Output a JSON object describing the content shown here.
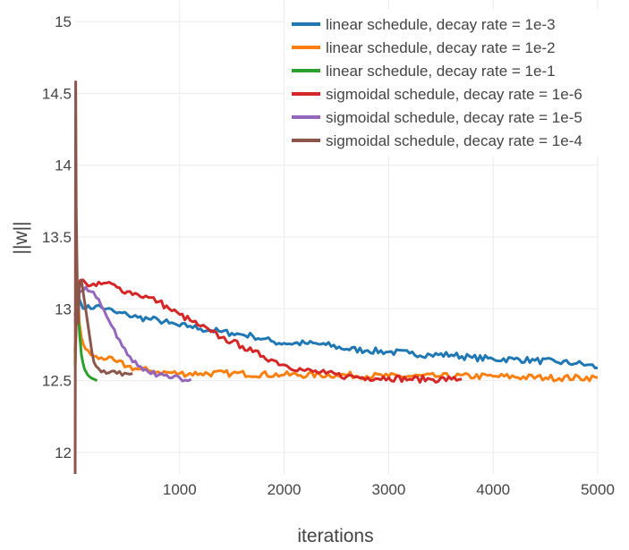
{
  "chart_data": {
    "type": "line",
    "xlabel": "iterations",
    "ylabel": "||w||",
    "xlim": [
      0,
      5000
    ],
    "ylim": [
      11.85,
      15.15
    ],
    "xticks": [
      1000,
      2000,
      3000,
      4000,
      5000
    ],
    "xtick_labels": [
      "1000",
      "2000",
      "3000",
      "4000",
      "5000"
    ],
    "yticks": [
      12,
      12.5,
      13,
      13.5,
      14,
      14.5,
      15
    ],
    "ytick_labels": [
      "12",
      "12.5",
      "13",
      "13.5",
      "14",
      "14.5",
      "15"
    ],
    "grid": true,
    "legend_position": "top-right",
    "series": [
      {
        "name": "linear schedule, decay rate = 1e-3",
        "color": "#1f77b4",
        "x": [
          0,
          20,
          50,
          100,
          200,
          300,
          400,
          500,
          600,
          700,
          800,
          900,
          1000,
          1100,
          1200,
          1300,
          1400,
          1500,
          1600,
          1700,
          1800,
          1900,
          2000,
          2200,
          2400,
          2600,
          2800,
          3000,
          3200,
          3400,
          3600,
          3800,
          4000,
          4200,
          4400,
          4600,
          4800,
          4900,
          5000
        ],
        "y": [
          12.95,
          13.1,
          13.05,
          13.0,
          13.02,
          13.0,
          12.97,
          12.96,
          12.94,
          12.93,
          12.92,
          12.9,
          12.88,
          12.88,
          12.86,
          12.85,
          12.84,
          12.83,
          12.82,
          12.81,
          12.79,
          12.77,
          12.76,
          12.76,
          12.75,
          12.72,
          12.71,
          12.7,
          12.69,
          12.68,
          12.68,
          12.66,
          12.65,
          12.65,
          12.64,
          12.63,
          12.62,
          12.61,
          12.59
        ]
      },
      {
        "name": "linear schedule, decay rate = 1e-2",
        "color": "#ff7f0e",
        "x": [
          0,
          20,
          40,
          60,
          80,
          100,
          150,
          200,
          250,
          300,
          400,
          500,
          600,
          700,
          800,
          1000,
          1200,
          1500,
          2000,
          2500,
          3000,
          3500,
          4000,
          4500,
          5000
        ],
        "y": [
          12.6,
          13.2,
          12.9,
          12.8,
          12.75,
          12.72,
          12.68,
          12.67,
          12.66,
          12.65,
          12.63,
          12.6,
          12.58,
          12.57,
          12.56,
          12.55,
          12.55,
          12.55,
          12.54,
          12.54,
          12.53,
          12.53,
          12.53,
          12.52,
          12.52
        ]
      },
      {
        "name": "linear schedule, decay rate = 1e-1",
        "color": "#2ca02c",
        "x": [
          0,
          15,
          30,
          45,
          60,
          75,
          90,
          105,
          120,
          150,
          180,
          210
        ],
        "y": [
          12.6,
          13.1,
          12.95,
          12.8,
          12.68,
          12.62,
          12.58,
          12.56,
          12.54,
          12.52,
          12.51,
          12.5
        ]
      },
      {
        "name": "sigmoidal schedule, decay rate = 1e-6",
        "color": "#d62728",
        "x": [
          0,
          20,
          50,
          100,
          200,
          300,
          400,
          500,
          600,
          700,
          800,
          900,
          1000,
          1100,
          1200,
          1300,
          1400,
          1500,
          1600,
          1700,
          1800,
          1900,
          2000,
          2200,
          2400,
          2600,
          2800,
          3000,
          3200,
          3400,
          3600,
          3700
        ],
        "y": [
          12.7,
          13.1,
          13.2,
          13.18,
          13.16,
          13.18,
          13.15,
          13.12,
          13.1,
          13.08,
          13.05,
          13.0,
          12.96,
          12.92,
          12.88,
          12.84,
          12.8,
          12.77,
          12.74,
          12.7,
          12.67,
          12.64,
          12.61,
          12.57,
          12.55,
          12.53,
          12.52,
          12.52,
          12.51,
          12.51,
          12.51,
          12.51
        ]
      },
      {
        "name": "sigmoidal schedule, decay rate = 1e-5",
        "color": "#9467bd",
        "x": [
          0,
          20,
          50,
          100,
          150,
          200,
          250,
          300,
          350,
          400,
          450,
          500,
          550,
          600,
          700,
          800,
          900,
          1000,
          1110
        ],
        "y": [
          12.9,
          13.1,
          13.12,
          13.15,
          13.12,
          13.08,
          13.02,
          12.95,
          12.88,
          12.8,
          12.74,
          12.68,
          12.63,
          12.6,
          12.56,
          12.54,
          12.52,
          12.52,
          12.51
        ]
      },
      {
        "name": "sigmoidal schedule, decay rate = 1e-4",
        "color": "#8c564b",
        "x": [
          0,
          5,
          10,
          20,
          30,
          40,
          60,
          80,
          100,
          130,
          160,
          200,
          250,
          300,
          400,
          550
        ],
        "y": [
          11.85,
          14.58,
          13.7,
          13.2,
          12.9,
          13.15,
          13.2,
          13.1,
          13.0,
          12.85,
          12.7,
          12.6,
          12.56,
          12.55,
          12.55,
          12.55
        ]
      }
    ]
  }
}
